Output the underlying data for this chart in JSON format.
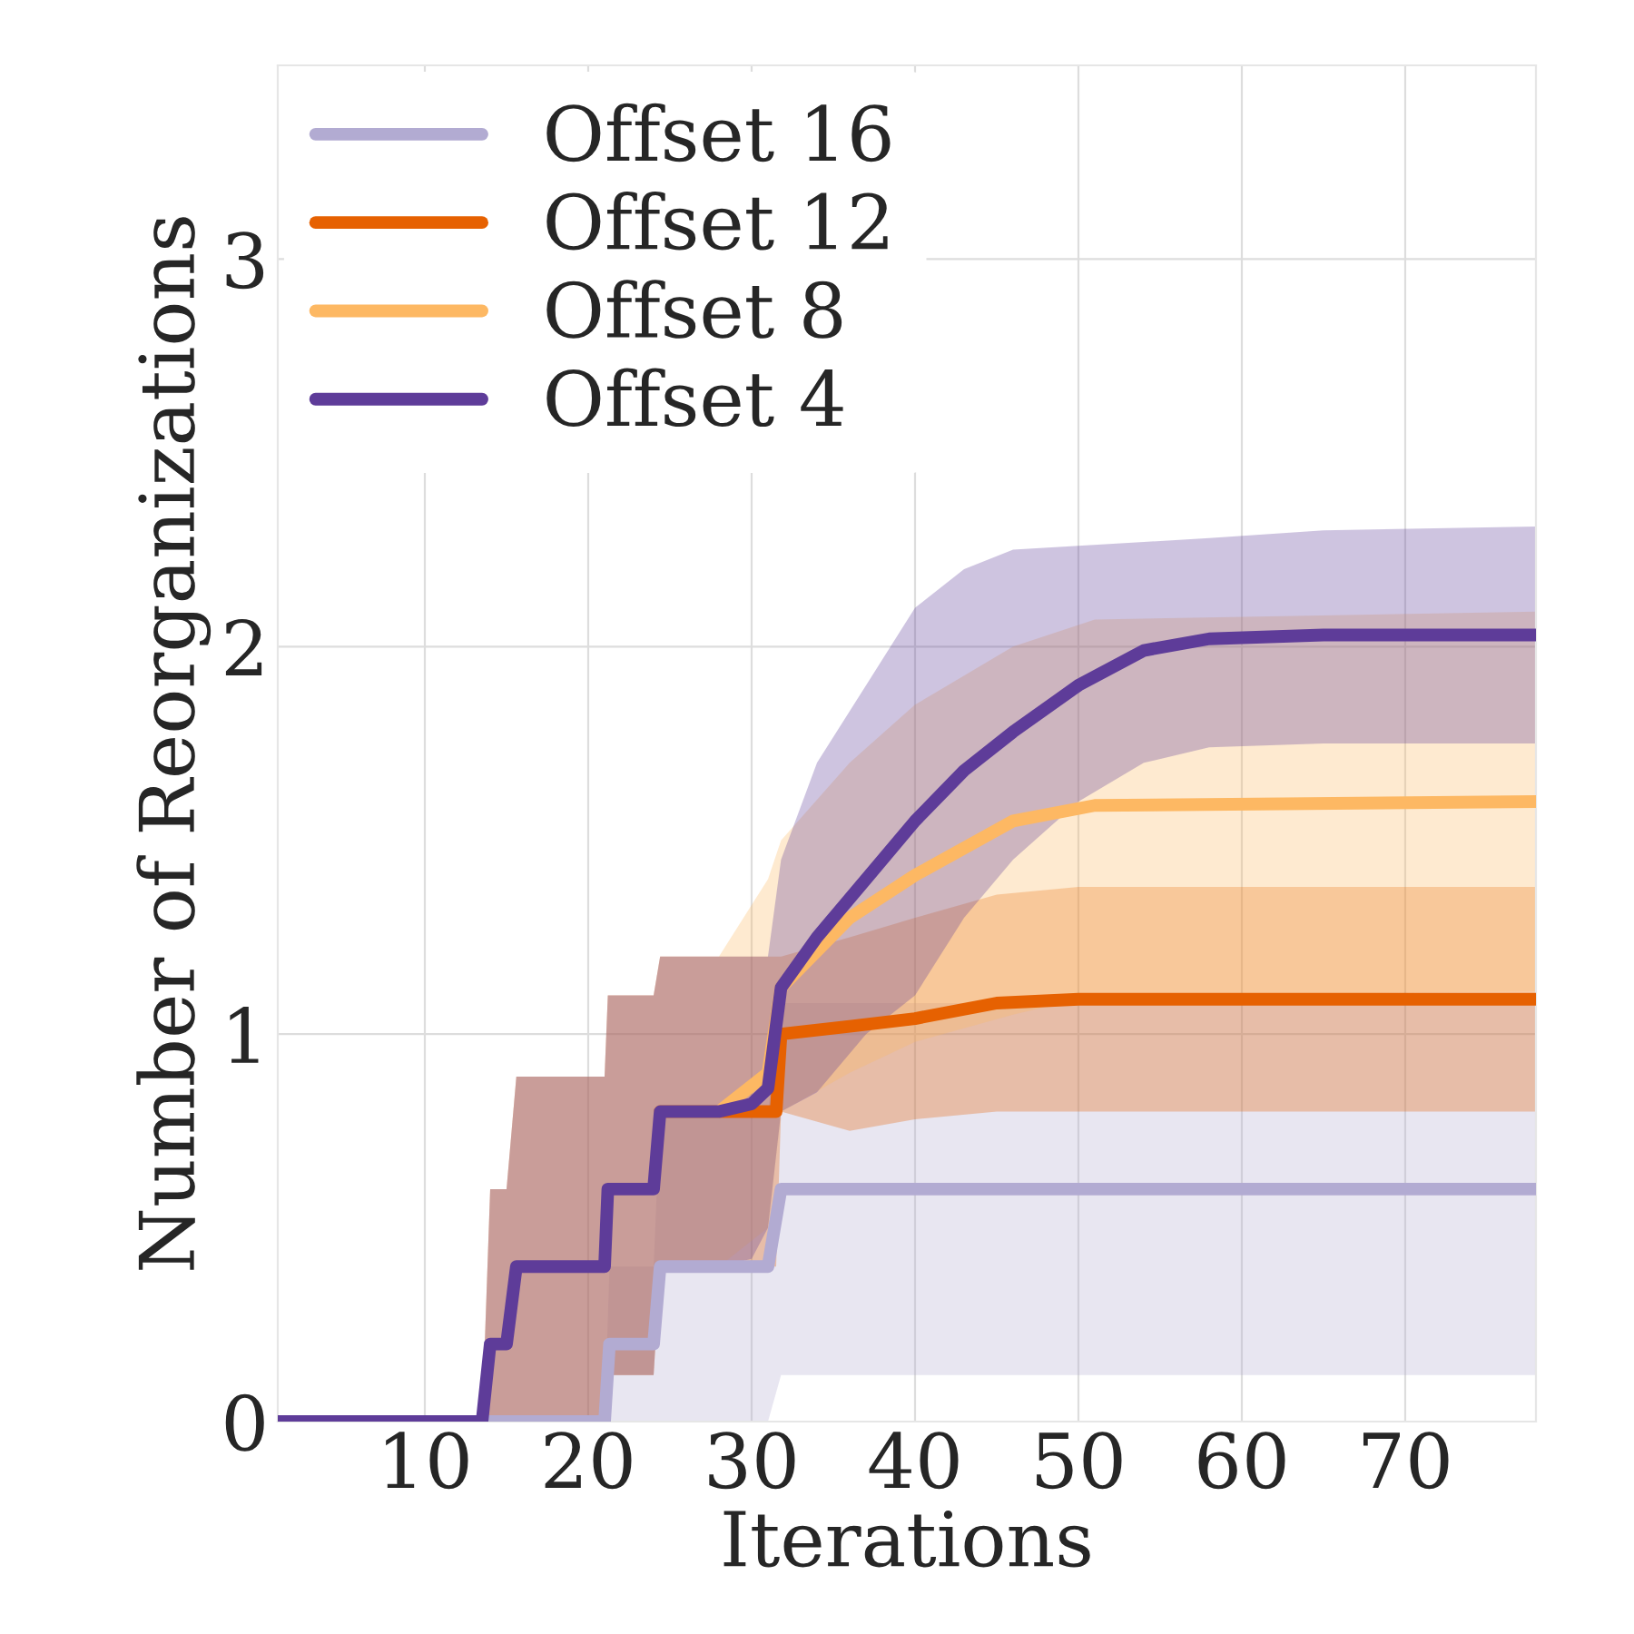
{
  "chart_data": {
    "type": "line",
    "xlabel": "Iterations",
    "ylabel": "Number of Reorganizations",
    "xlim": [
      1,
      78
    ],
    "ylim": [
      0,
      3.5
    ],
    "xticks": [
      10,
      20,
      30,
      40,
      50,
      60,
      70
    ],
    "yticks": [
      0,
      1,
      2,
      3
    ],
    "grid": true,
    "legend": "top left",
    "line_style": "solid",
    "series": [
      {
        "name": "Offset 16",
        "color": "#b2abd2",
        "x": [
          1,
          21,
          21.3,
          24,
          24.4,
          31,
          31.8,
          40,
          60,
          78
        ],
        "values": [
          0,
          0,
          0.2,
          0.2,
          0.4,
          0.4,
          0.6,
          0.6,
          0.6,
          0.6
        ],
        "upper": [
          0,
          0,
          0.4,
          0.4,
          0.8,
          0.8,
          1.08,
          1.08,
          1.08,
          1.08
        ],
        "lower": [
          0,
          0,
          0,
          0,
          0,
          0,
          0.12,
          0.12,
          0.12,
          0.12
        ]
      },
      {
        "name": "Offset 12",
        "color": "#e66101",
        "x": [
          1,
          13.5,
          14,
          15,
          15.6,
          21,
          21.2,
          24,
          24.4,
          31.5,
          31.8,
          36,
          40,
          45,
          50,
          60,
          78
        ],
        "values": [
          null,
          null,
          null,
          null,
          null,
          null,
          null,
          null,
          0.8,
          0.8,
          1.0,
          1.02,
          1.04,
          1.08,
          1.09,
          1.09,
          1.09
        ],
        "upper": [
          0,
          0,
          0.6,
          0.6,
          0.89,
          0.89,
          1.1,
          1.1,
          1.2,
          1.2,
          1.2,
          1.25,
          1.3,
          1.36,
          1.38,
          1.38,
          1.38
        ],
        "lower": [
          0,
          0,
          0,
          0,
          0,
          0,
          0.12,
          0.12,
          0.4,
          0.4,
          0.8,
          0.75,
          0.78,
          0.8,
          0.8,
          0.8,
          0.8
        ]
      },
      {
        "name": "Offset 8",
        "color": "#fdb863",
        "x": [
          1,
          13.5,
          14,
          15,
          15.6,
          21,
          21.2,
          24,
          24.4,
          28,
          31,
          31.8,
          36,
          40,
          46,
          51,
          78
        ],
        "values": [
          null,
          null,
          null,
          null,
          null,
          null,
          null,
          null,
          0.8,
          0.8,
          0.9,
          1.12,
          1.3,
          1.41,
          1.55,
          1.59,
          1.6
        ],
        "upper": [
          0,
          0,
          0.6,
          0.6,
          0.89,
          0.89,
          1.1,
          1.1,
          1.2,
          1.2,
          1.4,
          1.5,
          1.7,
          1.85,
          2.0,
          2.07,
          2.09
        ],
        "lower": [
          0,
          0,
          0,
          0,
          0,
          0,
          0.12,
          0.12,
          0.4,
          0.4,
          0.5,
          0.8,
          0.9,
          0.98,
          1.05,
          1.1,
          1.11
        ]
      },
      {
        "name": "Offset 4",
        "color": "#5e3c99",
        "x": [
          1,
          13.5,
          14,
          15,
          15.6,
          21,
          21.2,
          24,
          24.4,
          28,
          30,
          31,
          31.8,
          34,
          37,
          40,
          43,
          46,
          50,
          54,
          58,
          65,
          78
        ],
        "values": [
          0,
          0,
          0.2,
          0.2,
          0.4,
          0.4,
          0.6,
          0.6,
          0.8,
          0.8,
          0.82,
          0.86,
          1.12,
          1.25,
          1.4,
          1.55,
          1.68,
          1.78,
          1.9,
          1.99,
          2.02,
          2.03,
          2.03
        ],
        "upper": [
          0,
          0,
          0.6,
          0.6,
          0.89,
          0.89,
          1.1,
          1.1,
          1.2,
          1.2,
          1.2,
          1.2,
          1.45,
          1.7,
          1.9,
          2.1,
          2.2,
          2.25,
          2.26,
          2.27,
          2.28,
          2.3,
          2.31
        ],
        "lower": [
          0,
          0,
          0,
          0,
          0,
          0,
          0.12,
          0.12,
          0.4,
          0.4,
          0.42,
          0.5,
          0.8,
          0.85,
          1.0,
          1.1,
          1.3,
          1.45,
          1.6,
          1.7,
          1.74,
          1.75,
          1.75
        ]
      }
    ]
  }
}
